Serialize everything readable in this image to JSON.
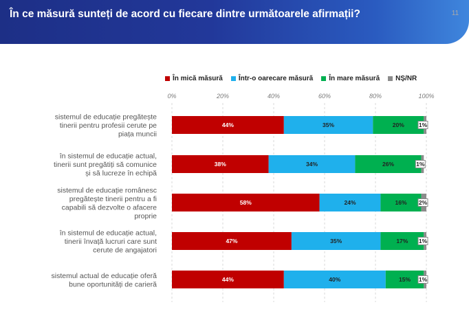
{
  "header": {
    "title": "În ce măsură sunteți de acord cu fiecare dintre următoarele afirmații?",
    "page_number": "11"
  },
  "colors": {
    "header_start": "#1d2f86",
    "header_end": "#3f86dd"
  },
  "chart_data": {
    "type": "bar",
    "orientation": "horizontal",
    "stacked": true,
    "xlim": [
      0,
      100
    ],
    "ticks": [
      "0%",
      "20%",
      "40%",
      "60%",
      "80%",
      "100%"
    ],
    "grid": true,
    "legend_placement": "top",
    "categories": [
      [
        "sistemul de educație pregătește",
        "tinerii pentru profesii cerute pe",
        "piața muncii"
      ],
      [
        "în sistemul de educație actual,",
        "tinerii sunt pregătiți să comunice",
        "și să lucreze în echipă"
      ],
      [
        "sistemul de educație românesc",
        "pregătește tinerii pentru a fi",
        "capabili să dezvolte o afacere",
        "proprie"
      ],
      [
        "în sistemul de educație actual,",
        "tinerii învață lucruri care sunt",
        "cerute de angajatori"
      ],
      [
        "sistemul actual de educație oferă",
        "bune oportunități de carieră"
      ]
    ],
    "series": [
      {
        "name": "În mică măsură",
        "color": "#c00000",
        "label_color": "#ffffff",
        "values": [
          44,
          38,
          58,
          47,
          44
        ]
      },
      {
        "name": "Într-o oarecare măsură",
        "color": "#1fb0ec",
        "label_color": "#222222",
        "values": [
          35,
          34,
          24,
          35,
          40
        ]
      },
      {
        "name": "În mare măsură",
        "color": "#00b050",
        "label_color": "#222222",
        "values": [
          20,
          26,
          16,
          17,
          15
        ]
      },
      {
        "name": "NȘ/NR",
        "color": "#8c8c8c",
        "label_color": "#222222",
        "values": [
          1,
          1,
          2,
          1,
          1
        ]
      }
    ]
  }
}
